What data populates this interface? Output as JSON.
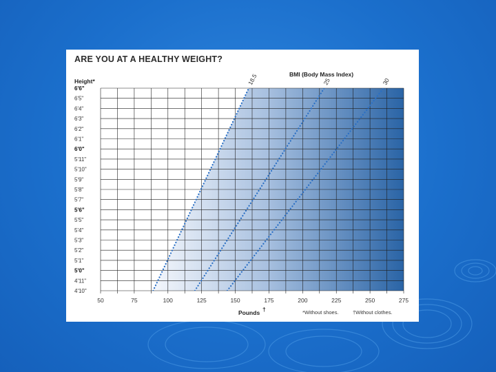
{
  "chart_data": {
    "type": "line",
    "title": "ARE YOU AT A HEALTHY WEIGHT?",
    "ylabel": "Height*",
    "xlabel": "Pounds",
    "xlabel_mark": "†",
    "legend_title": "BMI (Body Mass Index)",
    "notes": [
      "*Without shoes.",
      "†Without clothes."
    ],
    "y_ticks": [
      "4'10\"",
      "4'11\"",
      "5'0\"",
      "5'1\"",
      "5'2\"",
      "5'3\"",
      "5'4\"",
      "5'5\"",
      "5'6\"",
      "5'7\"",
      "5'8\"",
      "5'9\"",
      "5'10\"",
      "5'11\"",
      "6'0\"",
      "6'1\"",
      "6'2\"",
      "6'3\"",
      "6'4\"",
      "6'5\"",
      "6'6\""
    ],
    "y_bold": [
      "5'0\"",
      "5'6\"",
      "6'0\"",
      "6'6\""
    ],
    "x_ticks": [
      50,
      75,
      100,
      125,
      150,
      175,
      200,
      225,
      250,
      275
    ],
    "xlim": [
      50,
      275
    ],
    "ylim_inches": [
      58,
      78
    ],
    "series": [
      {
        "name": "18.5",
        "height_in": [
          58,
          78
        ],
        "pounds": [
          89,
          160
        ]
      },
      {
        "name": "25",
        "height_in": [
          58,
          78
        ],
        "pounds": [
          120,
          216
        ]
      },
      {
        "name": "30",
        "height_in": [
          58,
          78
        ],
        "pounds": [
          144,
          260
        ]
      }
    ]
  }
}
